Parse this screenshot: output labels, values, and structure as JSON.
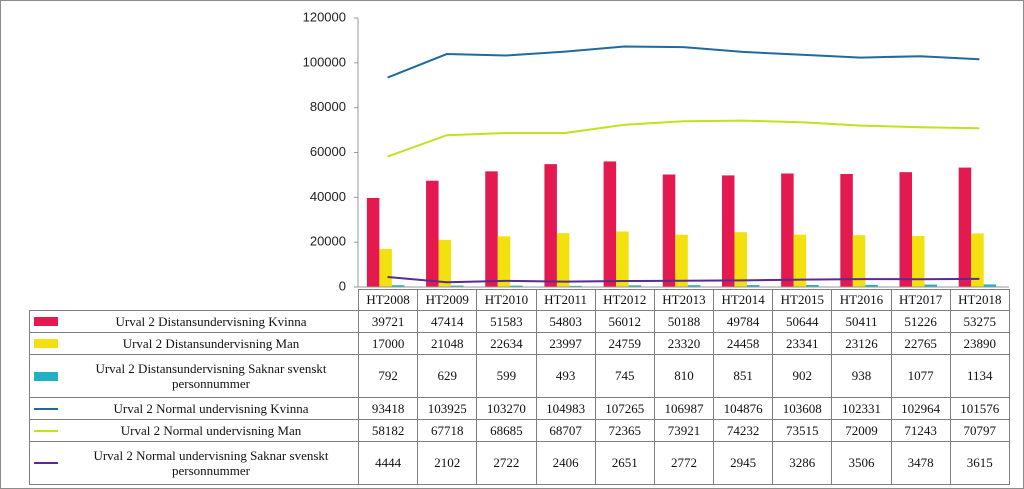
{
  "chart_data": {
    "type": "bar",
    "categories": [
      "HT2008",
      "HT2009",
      "HT2010",
      "HT2011",
      "HT2012",
      "HT2013",
      "HT2014",
      "HT2015",
      "HT2016",
      "HT2017",
      "HT2018"
    ],
    "ylim": [
      0,
      120000
    ],
    "yticks": [
      0,
      20000,
      40000,
      60000,
      80000,
      100000,
      120000
    ],
    "grid": false,
    "series": [
      {
        "name": "Urval 2 Distansundervisning Kvinna",
        "type": "bar",
        "color": "#e3194f",
        "values": [
          39721,
          47414,
          51583,
          54803,
          56012,
          50188,
          49784,
          50644,
          50411,
          51226,
          53275
        ]
      },
      {
        "name": "Urval 2 Distansundervisning Man",
        "type": "bar",
        "color": "#f2e00f",
        "values": [
          17000,
          21048,
          22634,
          23997,
          24759,
          23320,
          24458,
          23341,
          23126,
          22765,
          23890
        ]
      },
      {
        "name": "Urval 2 Distansundervisning Saknar svenskt personnummer",
        "type": "bar",
        "color": "#1fb3c2",
        "values": [
          792,
          629,
          599,
          493,
          745,
          810,
          851,
          902,
          938,
          1077,
          1134
        ]
      },
      {
        "name": "Urval 2 Normal undervisning Kvinna",
        "type": "line",
        "color": "#1f6b9e",
        "values": [
          93418,
          103925,
          103270,
          104983,
          107265,
          106987,
          104876,
          103608,
          102331,
          102964,
          101576
        ]
      },
      {
        "name": "Urval 2 Normal undervisning Man",
        "type": "line",
        "color": "#c6df1f",
        "values": [
          58182,
          67718,
          68685,
          68707,
          72365,
          73921,
          74232,
          73515,
          72009,
          71243,
          70797
        ]
      },
      {
        "name": "Urval 2 Normal undervisning Saknar svenskt personnummer",
        "type": "line",
        "color": "#5a2a8e",
        "values": [
          4444,
          2102,
          2722,
          2406,
          2651,
          2772,
          2945,
          3286,
          3506,
          3478,
          3615
        ]
      }
    ]
  }
}
